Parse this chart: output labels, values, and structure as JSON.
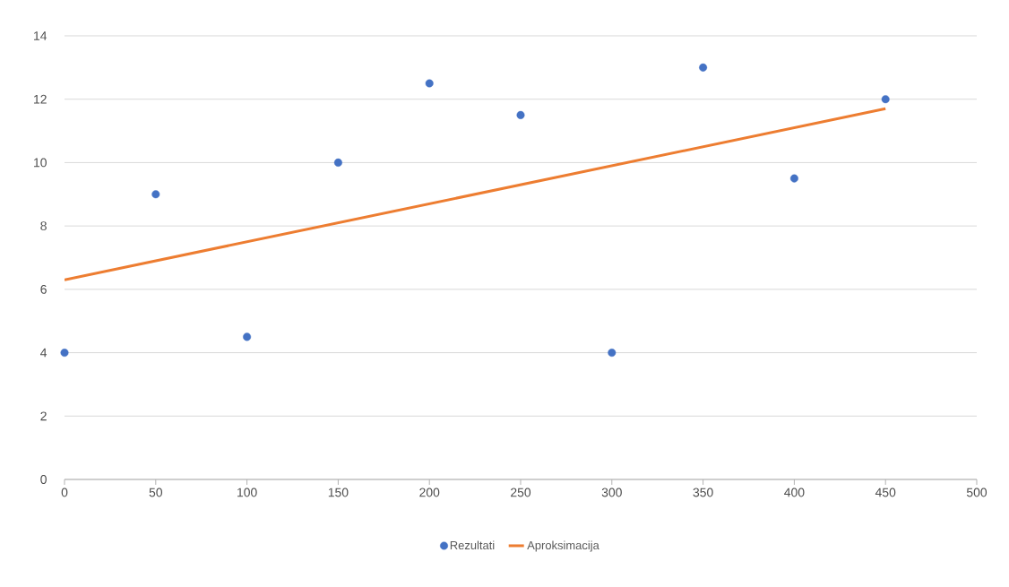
{
  "chart_data": {
    "type": "scatter",
    "x": [
      0,
      50,
      100,
      150,
      200,
      250,
      300,
      350,
      400,
      450
    ],
    "xlim": [
      0,
      500
    ],
    "xticks": [
      0,
      50,
      100,
      150,
      200,
      250,
      300,
      350,
      400,
      450,
      500
    ],
    "ylim": [
      0,
      14
    ],
    "yticks": [
      0,
      2,
      4,
      6,
      8,
      10,
      12,
      14
    ],
    "grid": "y",
    "legend": "bottom",
    "series": [
      {
        "name": "Rezultati",
        "type": "scatter",
        "marker": "circle",
        "color": "#4472c4",
        "values": [
          4,
          9,
          4.5,
          10,
          12.5,
          11.5,
          4,
          13,
          9.5,
          12
        ]
      },
      {
        "name": "Aproksimacija",
        "type": "line",
        "marker": "none",
        "line_style": "solid",
        "color": "#ed7d31",
        "x": [
          0,
          450
        ],
        "values": [
          6.3,
          11.7
        ]
      }
    ]
  }
}
